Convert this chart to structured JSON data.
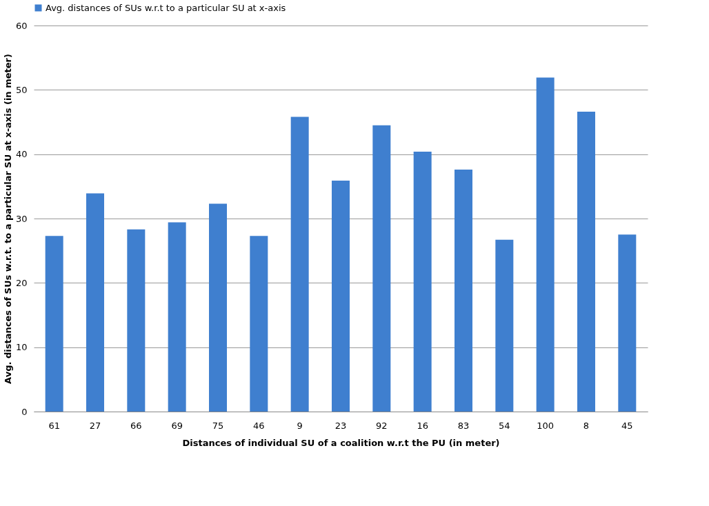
{
  "chart_data": {
    "type": "bar",
    "xlabel": "Distances of individual  SU of a coalition  w.r.t the PU (in meter)",
    "ylabel": "Avg. distances of SUs w.r.t. to a particular SU at x-axis (in meter)",
    "categories": [
      "61",
      "27",
      "66",
      "69",
      "75",
      "46",
      "9",
      "23",
      "92",
      "16",
      "83",
      "54",
      "100",
      "8",
      "45"
    ],
    "series": [
      {
        "name": "Avg. distances of SUs w.r.t to a particular SU at x-axis",
        "color": "#3f7fcf",
        "values": [
          27.3,
          33.9,
          28.3,
          29.4,
          32.3,
          27.3,
          45.8,
          35.9,
          44.5,
          40.4,
          37.6,
          26.7,
          51.9,
          46.6,
          27.5
        ]
      }
    ],
    "ylim": [
      0,
      60
    ],
    "yticks": [
      0,
      10,
      20,
      30,
      40,
      50,
      60
    ],
    "grid": "y",
    "legend": "top"
  }
}
